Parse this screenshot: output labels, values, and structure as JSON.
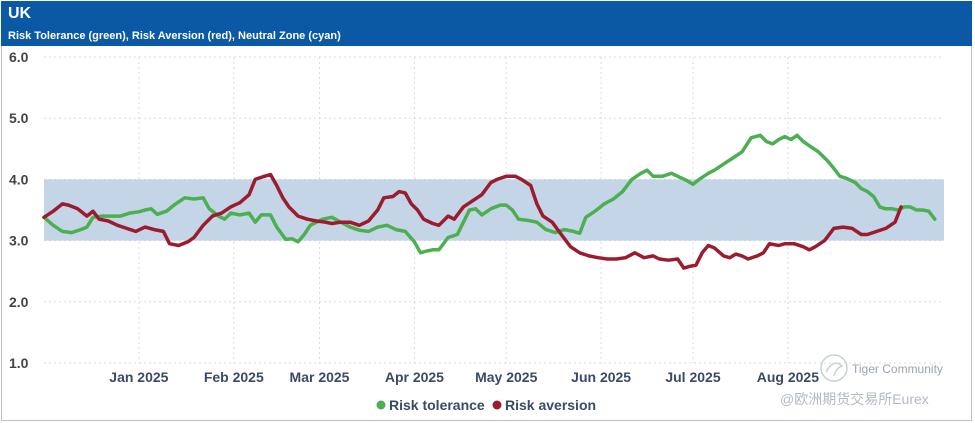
{
  "header": {
    "title": "UK",
    "subtitle": "Risk Tolerance (green), Risk Aversion (red), Neutral Zone (cyan)"
  },
  "watermark": {
    "line1": "Tiger Community",
    "line2": "@欧洲期货交易所Eurex"
  },
  "chart_data": {
    "type": "line",
    "title": "UK",
    "subtitle": "Risk Tolerance (green), Risk Aversion (red), Neutral Zone (cyan)",
    "ylim": [
      1.0,
      6.0
    ],
    "yticks": [
      "1.0",
      "2.0",
      "3.0",
      "4.0",
      "5.0",
      "6.0"
    ],
    "xlim": [
      0,
      294
    ],
    "x_ticks": [
      {
        "label": "Jan 2025",
        "x": 31
      },
      {
        "label": "Feb 2025",
        "x": 62
      },
      {
        "label": "Mar 2025",
        "x": 90
      },
      {
        "label": "Apr 2025",
        "x": 121
      },
      {
        "label": "May 2025",
        "x": 151
      },
      {
        "label": "Jun 2025",
        "x": 182
      },
      {
        "label": "Jul 2025",
        "x": 212
      },
      {
        "label": "Aug 2025",
        "x": 243
      }
    ],
    "neutral_zone": [
      3.0,
      4.0
    ],
    "grid": true,
    "legend_position": "bottom-center",
    "colors": {
      "risk_tolerance": "#4caf50",
      "risk_aversion": "#9b1c2e",
      "neutral_zone": "#c3d5e6",
      "grid": "#d7dbe0"
    },
    "series": [
      {
        "name": "Risk tolerance",
        "color": "#4caf50",
        "points": [
          [
            0,
            3.38
          ],
          [
            3,
            3.25
          ],
          [
            6,
            3.15
          ],
          [
            9,
            3.13
          ],
          [
            12,
            3.18
          ],
          [
            14,
            3.22
          ],
          [
            16,
            3.38
          ],
          [
            19,
            3.4
          ],
          [
            22,
            3.4
          ],
          [
            25,
            3.4
          ],
          [
            28,
            3.45
          ],
          [
            31,
            3.47
          ],
          [
            33,
            3.5
          ],
          [
            35,
            3.52
          ],
          [
            37,
            3.43
          ],
          [
            40,
            3.48
          ],
          [
            43,
            3.6
          ],
          [
            46,
            3.7
          ],
          [
            49,
            3.68
          ],
          [
            52,
            3.7
          ],
          [
            54,
            3.52
          ],
          [
            57,
            3.4
          ],
          [
            59,
            3.35
          ],
          [
            61,
            3.45
          ],
          [
            64,
            3.42
          ],
          [
            67,
            3.45
          ],
          [
            69,
            3.3
          ],
          [
            71,
            3.42
          ],
          [
            74,
            3.42
          ],
          [
            76,
            3.22
          ],
          [
            79,
            3.02
          ],
          [
            81,
            3.03
          ],
          [
            83,
            2.98
          ],
          [
            85,
            3.1
          ],
          [
            87,
            3.25
          ],
          [
            89,
            3.3
          ],
          [
            91,
            3.35
          ],
          [
            94,
            3.38
          ],
          [
            97,
            3.3
          ],
          [
            100,
            3.22
          ],
          [
            103,
            3.17
          ],
          [
            106,
            3.15
          ],
          [
            109,
            3.22
          ],
          [
            112,
            3.25
          ],
          [
            115,
            3.18
          ],
          [
            118,
            3.15
          ],
          [
            121,
            2.98
          ],
          [
            123,
            2.8
          ],
          [
            125,
            2.83
          ],
          [
            127,
            2.85
          ],
          [
            129,
            2.85
          ],
          [
            132,
            3.05
          ],
          [
            135,
            3.1
          ],
          [
            137,
            3.3
          ],
          [
            139,
            3.5
          ],
          [
            141,
            3.52
          ],
          [
            143,
            3.42
          ],
          [
            146,
            3.52
          ],
          [
            149,
            3.58
          ],
          [
            151,
            3.58
          ],
          [
            153,
            3.5
          ],
          [
            155,
            3.35
          ],
          [
            158,
            3.33
          ],
          [
            161,
            3.3
          ],
          [
            164,
            3.18
          ],
          [
            167,
            3.13
          ],
          [
            170,
            3.18
          ],
          [
            173,
            3.15
          ],
          [
            175,
            3.12
          ],
          [
            177,
            3.38
          ],
          [
            180,
            3.48
          ],
          [
            183,
            3.6
          ],
          [
            186,
            3.68
          ],
          [
            189,
            3.8
          ],
          [
            192,
            4.0
          ],
          [
            195,
            4.1
          ],
          [
            197,
            4.15
          ],
          [
            199,
            4.05
          ],
          [
            202,
            4.05
          ],
          [
            205,
            4.1
          ],
          [
            207,
            4.05
          ],
          [
            210,
            3.98
          ],
          [
            212,
            3.92
          ],
          [
            214,
            4.0
          ],
          [
            217,
            4.1
          ],
          [
            219,
            4.15
          ],
          [
            222,
            4.25
          ],
          [
            225,
            4.35
          ],
          [
            228,
            4.45
          ],
          [
            231,
            4.68
          ],
          [
            234,
            4.72
          ],
          [
            236,
            4.62
          ],
          [
            238,
            4.58
          ],
          [
            240,
            4.65
          ],
          [
            242,
            4.7
          ],
          [
            244,
            4.65
          ],
          [
            246,
            4.72
          ],
          [
            248,
            4.62
          ],
          [
            250,
            4.55
          ],
          [
            253,
            4.45
          ],
          [
            256,
            4.3
          ],
          [
            258,
            4.18
          ],
          [
            260,
            4.05
          ],
          [
            262,
            4.02
          ],
          [
            265,
            3.95
          ],
          [
            267,
            3.85
          ],
          [
            269,
            3.8
          ],
          [
            271,
            3.72
          ],
          [
            273,
            3.55
          ],
          [
            275,
            3.52
          ],
          [
            277,
            3.52
          ],
          [
            279,
            3.5
          ],
          [
            281,
            3.55
          ],
          [
            283,
            3.55
          ],
          [
            285,
            3.5
          ],
          [
            287,
            3.5
          ],
          [
            289,
            3.48
          ],
          [
            291,
            3.35
          ]
        ]
      },
      {
        "name": "Risk aversion",
        "color": "#9b1c2e",
        "points": [
          [
            0,
            3.38
          ],
          [
            3,
            3.48
          ],
          [
            6,
            3.6
          ],
          [
            8,
            3.58
          ],
          [
            11,
            3.52
          ],
          [
            14,
            3.4
          ],
          [
            16,
            3.48
          ],
          [
            18,
            3.35
          ],
          [
            21,
            3.32
          ],
          [
            24,
            3.25
          ],
          [
            27,
            3.2
          ],
          [
            30,
            3.15
          ],
          [
            33,
            3.22
          ],
          [
            36,
            3.18
          ],
          [
            39,
            3.15
          ],
          [
            41,
            2.95
          ],
          [
            44,
            2.92
          ],
          [
            47,
            2.98
          ],
          [
            49,
            3.05
          ],
          [
            52,
            3.25
          ],
          [
            55,
            3.4
          ],
          [
            58,
            3.45
          ],
          [
            61,
            3.55
          ],
          [
            64,
            3.62
          ],
          [
            67,
            3.75
          ],
          [
            69,
            4.0
          ],
          [
            72,
            4.05
          ],
          [
            74,
            4.08
          ],
          [
            76,
            3.9
          ],
          [
            78,
            3.7
          ],
          [
            80,
            3.55
          ],
          [
            83,
            3.4
          ],
          [
            86,
            3.35
          ],
          [
            89,
            3.32
          ],
          [
            92,
            3.3
          ],
          [
            94,
            3.28
          ],
          [
            97,
            3.3
          ],
          [
            100,
            3.3
          ],
          [
            103,
            3.25
          ],
          [
            106,
            3.32
          ],
          [
            109,
            3.5
          ],
          [
            111,
            3.7
          ],
          [
            114,
            3.72
          ],
          [
            116,
            3.8
          ],
          [
            118,
            3.78
          ],
          [
            120,
            3.6
          ],
          [
            122,
            3.5
          ],
          [
            124,
            3.35
          ],
          [
            127,
            3.28
          ],
          [
            129,
            3.25
          ],
          [
            132,
            3.4
          ],
          [
            134,
            3.35
          ],
          [
            137,
            3.55
          ],
          [
            140,
            3.65
          ],
          [
            143,
            3.75
          ],
          [
            146,
            3.95
          ],
          [
            148,
            4.0
          ],
          [
            151,
            4.05
          ],
          [
            154,
            4.05
          ],
          [
            156,
            4.0
          ],
          [
            159,
            3.9
          ],
          [
            161,
            3.6
          ],
          [
            163,
            3.4
          ],
          [
            166,
            3.3
          ],
          [
            169,
            3.1
          ],
          [
            172,
            2.9
          ],
          [
            175,
            2.8
          ],
          [
            178,
            2.75
          ],
          [
            181,
            2.72
          ],
          [
            184,
            2.7
          ],
          [
            187,
            2.7
          ],
          [
            190,
            2.72
          ],
          [
            193,
            2.8
          ],
          [
            196,
            2.72
          ],
          [
            199,
            2.75
          ],
          [
            201,
            2.7
          ],
          [
            204,
            2.68
          ],
          [
            207,
            2.7
          ],
          [
            209,
            2.55
          ],
          [
            211,
            2.58
          ],
          [
            213,
            2.6
          ],
          [
            215,
            2.8
          ],
          [
            217,
            2.92
          ],
          [
            219,
            2.88
          ],
          [
            222,
            2.75
          ],
          [
            224,
            2.72
          ],
          [
            226,
            2.78
          ],
          [
            228,
            2.75
          ],
          [
            230,
            2.7
          ],
          [
            233,
            2.75
          ],
          [
            235,
            2.8
          ],
          [
            237,
            2.95
          ],
          [
            240,
            2.92
          ],
          [
            242,
            2.95
          ],
          [
            245,
            2.95
          ],
          [
            248,
            2.9
          ],
          [
            250,
            2.85
          ],
          [
            252,
            2.9
          ],
          [
            255,
            3.0
          ],
          [
            258,
            3.2
          ],
          [
            261,
            3.22
          ],
          [
            264,
            3.2
          ],
          [
            267,
            3.1
          ],
          [
            269,
            3.1
          ],
          [
            272,
            3.15
          ],
          [
            275,
            3.2
          ],
          [
            278,
            3.3
          ],
          [
            280,
            3.55
          ]
        ]
      }
    ],
    "legend": [
      "Risk tolerance",
      "Risk aversion"
    ]
  }
}
